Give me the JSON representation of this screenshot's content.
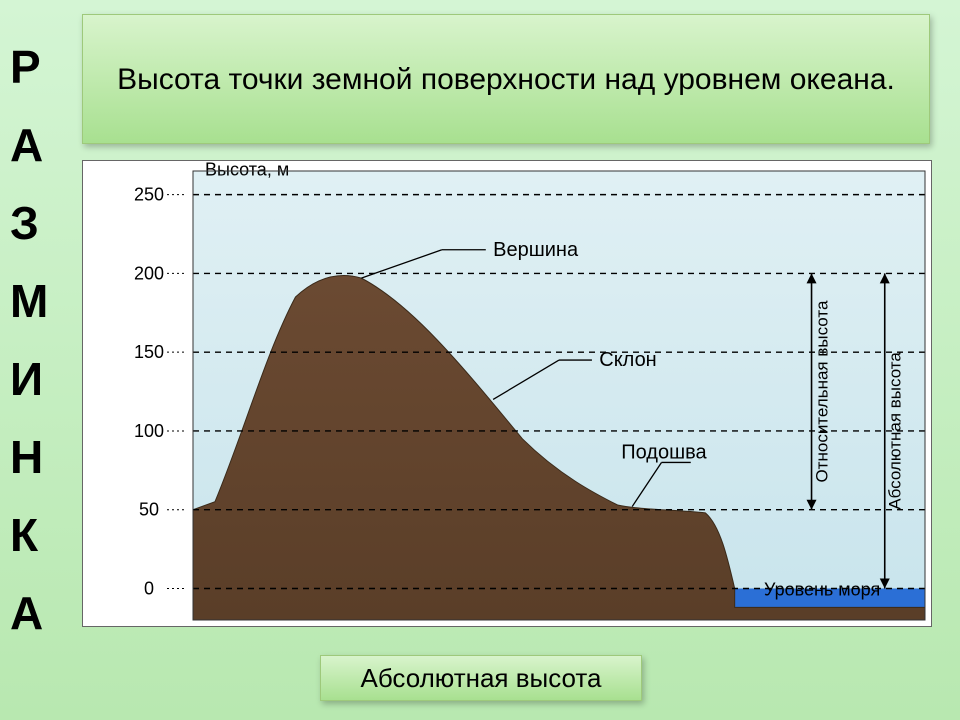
{
  "sidebar": {
    "vertical_word": "РАЗМИНКА"
  },
  "title": {
    "text": "Высота точки земной поверхности над уровнем океана."
  },
  "bottom": {
    "text": "Абсолютная высота"
  },
  "diagram": {
    "axis_title": "Высота, м",
    "y_ticks": [
      0,
      50,
      100,
      150,
      200,
      250
    ],
    "y_min": -20,
    "y_max": 265,
    "labels": {
      "peak": "Вершина",
      "slope": "Склон",
      "foot": "Подошва",
      "sea_level": "Уровень моря",
      "relative_height": "Относительная высота",
      "absolute_height": "Абсолютная высота"
    },
    "colors": {
      "sky_top": "#e0f0f4",
      "sky_bottom": "#c8e4ec",
      "ground": "#6b4a32",
      "ground_dark": "#5a3e28",
      "sea": "#2b6fd6",
      "grid": "#000000",
      "leader": "#000000",
      "arrow": "#000000"
    },
    "peak_height": 200,
    "foot_height": 50,
    "sea_height": 0
  }
}
